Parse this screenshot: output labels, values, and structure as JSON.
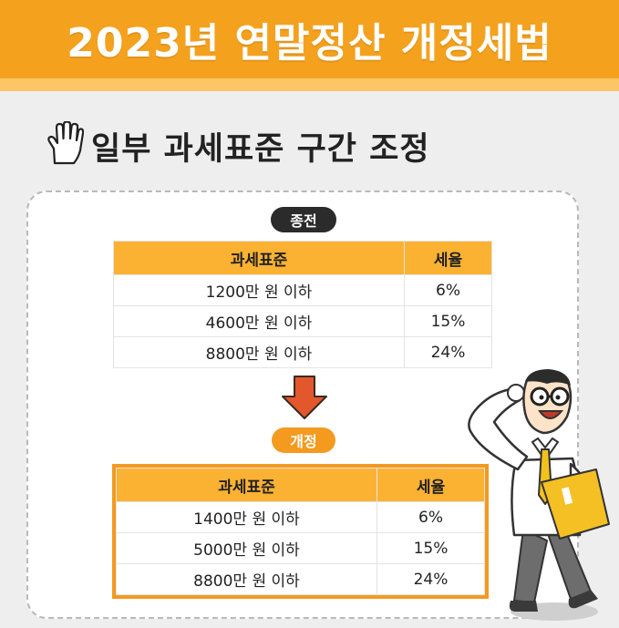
{
  "banner": {
    "title": "2023년 연말정산 개정세법"
  },
  "section": {
    "title": "일부 과세표준 구간 조정",
    "icon": "hand-icon"
  },
  "before": {
    "label": "종전",
    "headers": [
      "과세표준",
      "세율"
    ],
    "rows": [
      [
        "1200만 원 이하",
        "6%"
      ],
      [
        "4600만 원 이하",
        "15%"
      ],
      [
        "8800만 원 이하",
        "24%"
      ]
    ]
  },
  "after": {
    "label": "개정",
    "headers": [
      "과세표준",
      "세율"
    ],
    "rows": [
      [
        "1400만 원 이하",
        "6%"
      ],
      [
        "5000만 원 이하",
        "15%"
      ],
      [
        "8800만 원 이하",
        "24%"
      ]
    ]
  },
  "colors": {
    "accent": "#f39a1f",
    "header_fill": "#fbb233",
    "dark_pill": "#2b2b2b",
    "arrow": "#e2572c"
  }
}
